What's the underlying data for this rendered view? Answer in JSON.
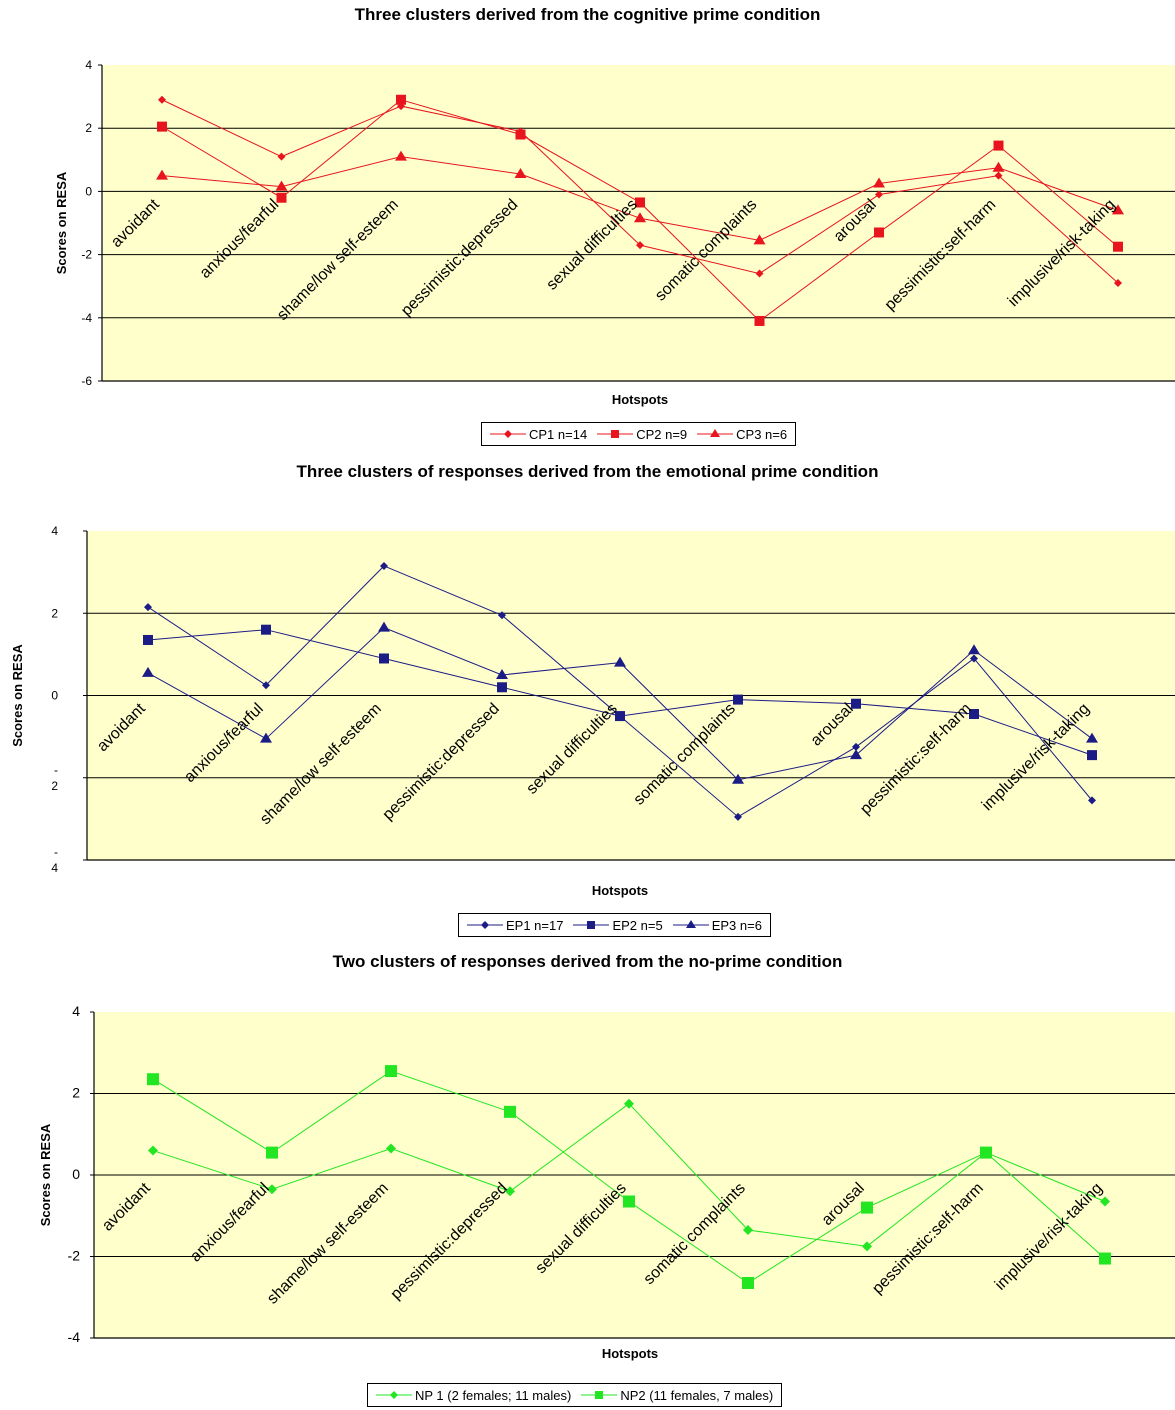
{
  "chart_data": [
    {
      "type": "line",
      "title": "Three clusters derived from the cognitive prime condition",
      "xlabel": "Hotspots",
      "ylabel": "Scores on RESA",
      "ylim": [
        -6,
        4
      ],
      "yticks": [
        "-6",
        "-4",
        "-2",
        "0",
        "2",
        "4"
      ],
      "gridlines": [
        -4,
        -2,
        0,
        2
      ],
      "categories": [
        "avoidant",
        "anxious/fearful",
        "shame/low self-esteem",
        "pessimistic:depressed",
        "sexual difficulties",
        "somatic complaints",
        "arousal",
        "pessimistic:self-harm",
        "implusive/risk-taking"
      ],
      "color": "#e8141e",
      "series": [
        {
          "name": "CP1 n=14",
          "marker": "diamond",
          "values": [
            2.9,
            1.1,
            2.7,
            1.9,
            -1.7,
            -2.6,
            -0.1,
            0.5,
            -2.9
          ]
        },
        {
          "name": "CP2 n=9",
          "marker": "square",
          "values": [
            2.05,
            -0.2,
            2.9,
            1.8,
            -0.35,
            -4.1,
            -1.3,
            1.45,
            -1.75
          ]
        },
        {
          "name": "CP3 n=6",
          "marker": "triangle",
          "values": [
            0.5,
            0.15,
            1.1,
            0.55,
            -0.85,
            -1.55,
            0.25,
            0.75,
            -0.6
          ]
        }
      ]
    },
    {
      "type": "line",
      "title": "Three clusters of responses derived from the emotional prime condition",
      "xlabel": "Hotspots",
      "ylabel": "Scores on RESA",
      "ylim": [
        -4,
        4
      ],
      "yticks": [
        "-\n4",
        "-\n2",
        "0",
        "2",
        "4"
      ],
      "gridlines": [
        -2,
        0,
        2
      ],
      "categories": [
        "avoidant",
        "anxious/fearful",
        "shame/low self-esteem",
        "pessimistic:depressed",
        "sexual difficulties",
        "somatic complaints",
        "arousal",
        "pessimistic:self-harm",
        "implusive/risk-taking"
      ],
      "color": "#1c1c86",
      "series": [
        {
          "name": "EP1 n=17",
          "marker": "diamond",
          "values": [
            2.15,
            0.25,
            3.15,
            1.95,
            -0.5,
            -2.95,
            -1.25,
            0.9,
            -2.55
          ]
        },
        {
          "name": "EP2 n=5",
          "marker": "square",
          "values": [
            1.35,
            1.6,
            0.9,
            0.2,
            -0.5,
            -0.1,
            -0.2,
            -0.45,
            -1.45
          ]
        },
        {
          "name": "EP3 n=6",
          "marker": "triangle",
          "values": [
            0.55,
            -1.05,
            1.65,
            0.5,
            0.8,
            -2.05,
            -1.45,
            1.1,
            -1.05
          ]
        }
      ]
    },
    {
      "type": "line",
      "title": "Two clusters of responses derived from the no-prime condition",
      "xlabel": "Hotspots",
      "ylabel": "Scores on RESA",
      "ylim": [
        -4,
        4
      ],
      "yticks": [
        "-4",
        "-2",
        "0",
        "2",
        "4"
      ],
      "gridlines": [
        -2,
        0,
        2
      ],
      "categories": [
        "avoidant",
        "anxious/fearful",
        "shame/low self-esteem",
        "pessimistic:depressed",
        "sexual difficulties",
        "somatic complaints",
        "arousal",
        "pessimistic:self-harm",
        "implusive/risk-taking"
      ],
      "color": "#22e622",
      "series": [
        {
          "name": "NP 1 (2 females; 11 males)",
          "marker": "diamond",
          "values": [
            0.6,
            -0.35,
            0.65,
            -0.4,
            1.75,
            -1.35,
            -1.75,
            0.55,
            -0.65
          ]
        },
        {
          "name": "NP2 (11 females, 7 males)",
          "marker": "square",
          "values": [
            2.35,
            0.55,
            2.55,
            1.55,
            -0.65,
            -2.65,
            -0.8,
            0.55,
            -2.05
          ]
        }
      ]
    }
  ],
  "colors": {
    "plot_background": "#ffffcc",
    "gridline": "#000000"
  }
}
